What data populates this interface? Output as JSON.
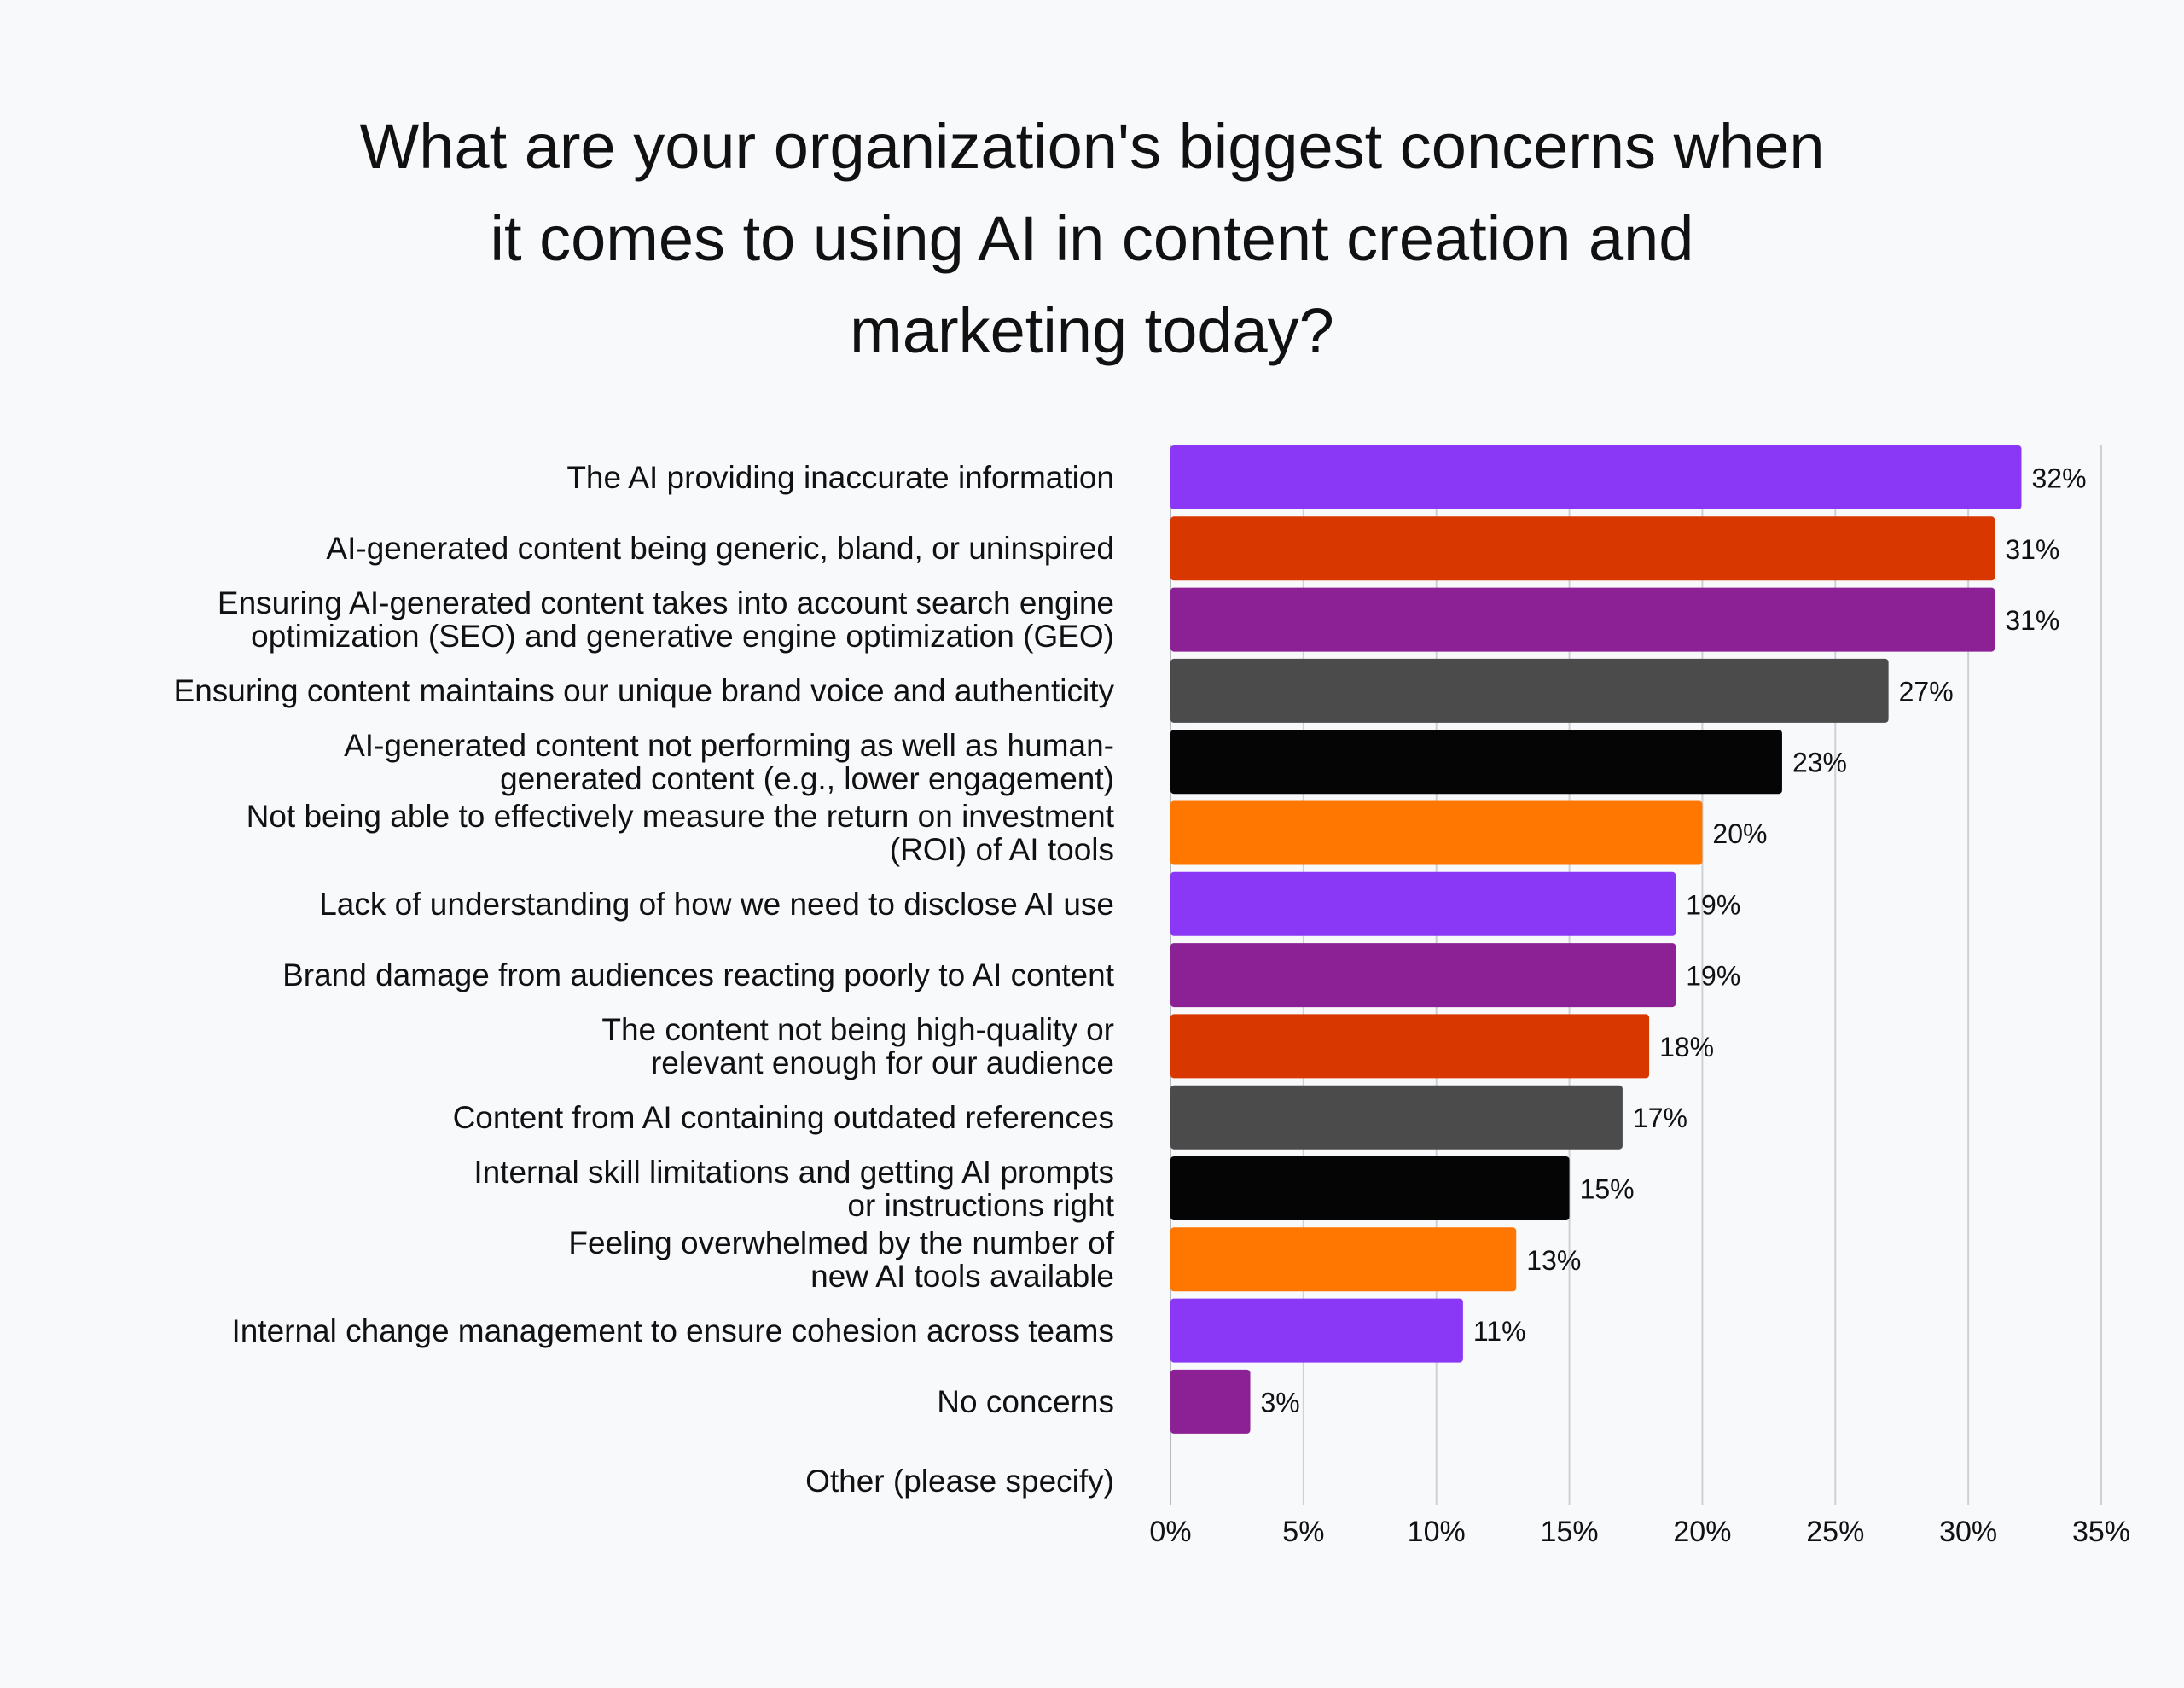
{
  "chart_data": {
    "type": "bar",
    "orientation": "horizontal",
    "title": "What are your organization's biggest concerns when it comes to using AI in content creation and marketing today?",
    "title_lines": [
      "What are your organization's biggest concerns when",
      "it comes to using AI in content creation and",
      "marketing today?"
    ],
    "categories": [
      [
        "The AI providing inaccurate information"
      ],
      [
        "AI-generated content being generic, bland, or uninspired"
      ],
      [
        "Ensuring AI-generated content takes into account search engine",
        "optimization (SEO) and generative engine optimization (GEO)"
      ],
      [
        "Ensuring content maintains our unique brand voice and authenticity"
      ],
      [
        "AI-generated content not performing as well as human-",
        "generated content (e.g., lower engagement)"
      ],
      [
        "Not being able to effectively measure the return on investment",
        "(ROI) of AI tools"
      ],
      [
        "Lack of understanding of how we need to disclose AI use"
      ],
      [
        "Brand damage from audiences reacting poorly to AI content"
      ],
      [
        "The content not being high-quality or",
        "relevant enough for our audience"
      ],
      [
        "Content from AI containing outdated references"
      ],
      [
        "Internal skill limitations and getting AI prompts",
        "or instructions right"
      ],
      [
        "Feeling overwhelmed by the number of",
        "new AI tools available"
      ],
      [
        "Internal change management to ensure cohesion across teams"
      ],
      [
        "No concerns"
      ],
      [
        "Other (please specify)"
      ]
    ],
    "values": [
      32,
      31,
      31,
      27,
      23,
      20,
      19,
      19,
      18,
      17,
      15,
      13,
      11,
      3,
      null
    ],
    "data_labels": [
      "32%",
      "31%",
      "31%",
      "27%",
      "23%",
      "20%",
      "19%",
      "19%",
      "18%",
      "17%",
      "15%",
      "13%",
      "11%",
      "3%",
      ""
    ],
    "colors": [
      "#8a38f5",
      "#d93700",
      "#8c2196",
      "#4b4b4b",
      "#050505",
      "#ff7600",
      "#8a38f5",
      "#8c2196",
      "#d93700",
      "#4b4b4b",
      "#050505",
      "#ff7600",
      "#8a38f5",
      "#8c2196",
      "#8a38f5"
    ],
    "xlim": [
      0,
      35
    ],
    "xticks": [
      "0%",
      "5%",
      "10%",
      "15%",
      "20%",
      "25%",
      "30%",
      "35%"
    ],
    "xlabel": "",
    "ylabel": "",
    "grid": "vertical",
    "legend": "none"
  }
}
